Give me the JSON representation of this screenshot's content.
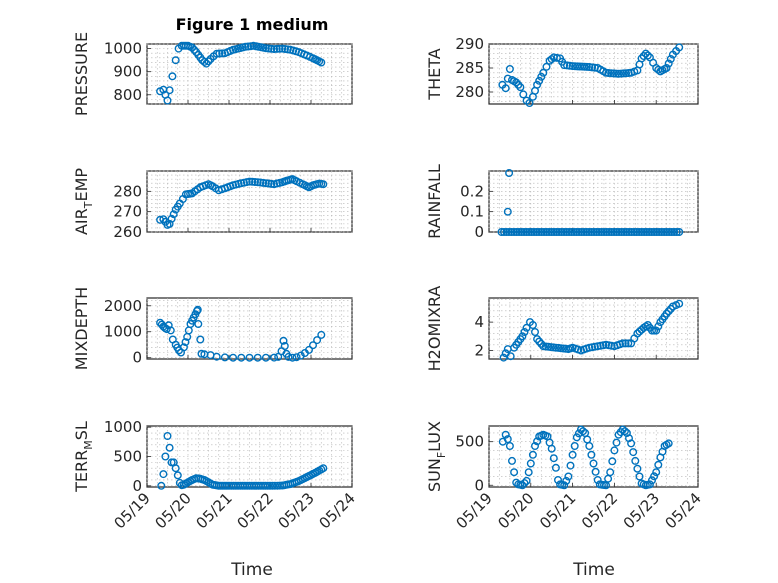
{
  "figure": {
    "title": "Figure 1 medium",
    "xlabel": "Time",
    "marker_color": "#0072BD"
  },
  "chart_data": [
    {
      "type": "scatter",
      "id": "pressure",
      "ylabel": "PRESSURE",
      "ylabel_sub": "",
      "ylabel_post": "",
      "xlim": [
        0,
        5
      ],
      "ylim": [
        760,
        1020
      ],
      "xticks": [
        0,
        1,
        2,
        3,
        4,
        5
      ],
      "xtick_labels": [
        "05/19",
        "05/20",
        "05/21",
        "05/22",
        "05/23",
        "05/24"
      ],
      "yticks": [
        800,
        900,
        1000
      ],
      "ytick_labels": [
        "800",
        "900",
        "1000"
      ],
      "grid": true,
      "minor_grid": true,
      "knots": [
        [
          0.32,
          815
        ],
        [
          0.4,
          822
        ],
        [
          0.45,
          800
        ],
        [
          0.5,
          775
        ],
        [
          0.55,
          820
        ],
        [
          0.62,
          880
        ],
        [
          0.7,
          950
        ],
        [
          0.77,
          1000
        ],
        [
          0.85,
          1012
        ],
        [
          1.0,
          1012
        ],
        [
          1.1,
          1005
        ],
        [
          1.2,
          985
        ],
        [
          1.35,
          950
        ],
        [
          1.45,
          935
        ],
        [
          1.55,
          955
        ],
        [
          1.7,
          978
        ],
        [
          1.9,
          980
        ],
        [
          2.1,
          995
        ],
        [
          2.4,
          1008
        ],
        [
          2.6,
          1012
        ],
        [
          2.9,
          1002
        ],
        [
          3.1,
          998
        ],
        [
          3.3,
          1000
        ],
        [
          3.5,
          995
        ],
        [
          3.7,
          985
        ],
        [
          3.9,
          970
        ],
        [
          4.05,
          958
        ],
        [
          4.2,
          945
        ],
        [
          4.25,
          940
        ]
      ],
      "step": 0.06
    },
    {
      "type": "scatter",
      "id": "theta",
      "ylabel": "THETA",
      "ylabel_sub": "",
      "ylabel_post": "",
      "xlim": [
        0,
        5
      ],
      "ylim": [
        277.5,
        290
      ],
      "xticks": [
        0,
        1,
        2,
        3,
        4,
        5
      ],
      "xtick_labels": [
        "05/19",
        "05/20",
        "05/21",
        "05/22",
        "05/23",
        "05/24"
      ],
      "yticks": [
        280,
        285,
        290
      ],
      "ytick_labels": [
        "280",
        "285",
        "290"
      ],
      "grid": true,
      "minor_grid": true,
      "knots": [
        [
          0.32,
          281.5
        ],
        [
          0.4,
          280.8
        ],
        [
          0.45,
          282.8
        ],
        [
          0.5,
          284.8
        ],
        [
          0.55,
          282.5
        ],
        [
          0.65,
          282.0
        ],
        [
          0.75,
          281.0
        ],
        [
          0.82,
          279.5
        ],
        [
          0.9,
          278.2
        ],
        [
          0.97,
          277.7
        ],
        [
          1.05,
          279.0
        ],
        [
          1.15,
          281.5
        ],
        [
          1.3,
          284.0
        ],
        [
          1.45,
          286.5
        ],
        [
          1.55,
          287.2
        ],
        [
          1.7,
          287.0
        ],
        [
          1.8,
          285.6
        ],
        [
          2.0,
          285.4
        ],
        [
          2.4,
          285.2
        ],
        [
          2.6,
          285.0
        ],
        [
          2.8,
          284.0
        ],
        [
          3.1,
          283.8
        ],
        [
          3.4,
          284.0
        ],
        [
          3.55,
          284.5
        ],
        [
          3.65,
          287.0
        ],
        [
          3.75,
          288.0
        ],
        [
          3.85,
          287.2
        ],
        [
          4.0,
          285.0
        ],
        [
          4.1,
          284.3
        ],
        [
          4.25,
          285.0
        ],
        [
          4.4,
          287.8
        ],
        [
          4.55,
          289.3
        ]
      ],
      "step": 0.06
    },
    {
      "type": "scatter",
      "id": "air-temp",
      "ylabel": "AIR",
      "ylabel_sub": "T",
      "ylabel_post": "EMP",
      "xlim": [
        0,
        5
      ],
      "ylim": [
        260,
        290
      ],
      "xticks": [
        0,
        1,
        2,
        3,
        4,
        5
      ],
      "xtick_labels": [
        "05/19",
        "05/20",
        "05/21",
        "05/22",
        "05/23",
        "05/24"
      ],
      "yticks": [
        260,
        270,
        280
      ],
      "ytick_labels": [
        "260",
        "270",
        "280"
      ],
      "grid": true,
      "minor_grid": true,
      "knots": [
        [
          0.32,
          266.0
        ],
        [
          0.4,
          266.3
        ],
        [
          0.45,
          265.0
        ],
        [
          0.5,
          263.5
        ],
        [
          0.55,
          264.0
        ],
        [
          0.6,
          266.5
        ],
        [
          0.7,
          271.0
        ],
        [
          0.8,
          274.0
        ],
        [
          0.95,
          278.5
        ],
        [
          1.1,
          279.0
        ],
        [
          1.3,
          282.0
        ],
        [
          1.5,
          283.5
        ],
        [
          1.6,
          282.5
        ],
        [
          1.75,
          280.5
        ],
        [
          1.9,
          281.5
        ],
        [
          2.1,
          283.0
        ],
        [
          2.3,
          284.0
        ],
        [
          2.5,
          284.8
        ],
        [
          2.7,
          284.5
        ],
        [
          2.9,
          284.0
        ],
        [
          3.1,
          283.5
        ],
        [
          3.3,
          284.5
        ],
        [
          3.45,
          285.5
        ],
        [
          3.55,
          286.0
        ],
        [
          3.65,
          285.0
        ],
        [
          3.8,
          283.5
        ],
        [
          3.95,
          282.0
        ],
        [
          4.05,
          283.0
        ],
        [
          4.2,
          283.8
        ],
        [
          4.3,
          283.5
        ]
      ],
      "step": 0.06
    },
    {
      "type": "scatter",
      "id": "rainfall",
      "ylabel": "RAINFALL",
      "ylabel_sub": "",
      "ylabel_post": "",
      "xlim": [
        0,
        5
      ],
      "ylim": [
        0,
        0.3
      ],
      "xticks": [
        0,
        1,
        2,
        3,
        4,
        5
      ],
      "xtick_labels": [
        "05/19",
        "05/20",
        "05/21",
        "05/22",
        "05/23",
        "05/24"
      ],
      "yticks": [
        0,
        0.1,
        0.2
      ],
      "ytick_labels": [
        "0",
        "0.1",
        "0.2"
      ],
      "grid": true,
      "minor_grid": true,
      "knots": [
        [
          0.3,
          0
        ],
        [
          4.55,
          0
        ]
      ],
      "step": 0.06,
      "extra_points": [
        [
          0.45,
          0.1
        ],
        [
          0.48,
          0.29
        ]
      ]
    },
    {
      "type": "scatter",
      "id": "mixdepth",
      "ylabel": "MIXDEPTH",
      "ylabel_sub": "",
      "ylabel_post": "",
      "xlim": [
        0,
        5
      ],
      "ylim": [
        -50,
        2300
      ],
      "xticks": [
        0,
        1,
        2,
        3,
        4,
        5
      ],
      "xtick_labels": [
        "05/19",
        "05/20",
        "05/21",
        "05/22",
        "05/23",
        "05/24"
      ],
      "yticks": [
        0,
        1000,
        2000
      ],
      "ytick_labels": [
        "0",
        "1000",
        "2000"
      ],
      "grid": true,
      "minor_grid": true,
      "knots": [
        [
          0.32,
          1350
        ],
        [
          0.4,
          1200
        ],
        [
          0.48,
          1100
        ],
        [
          0.53,
          1250
        ],
        [
          0.58,
          1050
        ],
        [
          0.63,
          700
        ],
        [
          0.7,
          500
        ],
        [
          0.78,
          280
        ],
        [
          0.83,
          200
        ],
        [
          0.9,
          400
        ],
        [
          0.98,
          800
        ],
        [
          1.06,
          1300
        ],
        [
          1.14,
          1550
        ],
        [
          1.22,
          1800
        ],
        [
          1.24,
          1850
        ]
      ],
      "step": 0.05,
      "extra_points": [
        [
          1.25,
          1300
        ],
        [
          1.3,
          700
        ],
        [
          1.33,
          150
        ],
        [
          1.4,
          130
        ],
        [
          1.55,
          100
        ],
        [
          1.7,
          40
        ],
        [
          1.9,
          10
        ],
        [
          2.1,
          0
        ],
        [
          2.3,
          0
        ],
        [
          2.5,
          0
        ],
        [
          2.7,
          0
        ],
        [
          2.9,
          0
        ],
        [
          3.1,
          5
        ],
        [
          3.2,
          30
        ],
        [
          3.28,
          250
        ],
        [
          3.33,
          650
        ],
        [
          3.36,
          450
        ],
        [
          3.4,
          150
        ],
        [
          3.45,
          30
        ],
        [
          3.55,
          0
        ],
        [
          3.65,
          20
        ],
        [
          3.75,
          80
        ],
        [
          3.85,
          180
        ],
        [
          3.95,
          300
        ],
        [
          4.05,
          480
        ],
        [
          4.15,
          680
        ],
        [
          4.25,
          880
        ]
      ]
    },
    {
      "type": "scatter",
      "id": "h2omixra",
      "ylabel": "H2OMIXRA",
      "ylabel_sub": "",
      "ylabel_post": "",
      "xlim": [
        0,
        5
      ],
      "ylim": [
        1.4,
        5.7
      ],
      "xticks": [
        0,
        1,
        2,
        3,
        4,
        5
      ],
      "xtick_labels": [
        "05/19",
        "05/20",
        "05/21",
        "05/22",
        "05/23",
        "05/24"
      ],
      "yticks": [
        2,
        4
      ],
      "ytick_labels": [
        "2",
        "4"
      ],
      "grid": true,
      "minor_grid": true,
      "knots": [
        [
          0.35,
          1.5
        ],
        [
          0.45,
          2.1
        ],
        [
          0.52,
          1.6
        ],
        [
          0.6,
          2.2
        ],
        [
          0.7,
          2.6
        ],
        [
          0.8,
          3.0
        ],
        [
          0.9,
          3.6
        ],
        [
          0.98,
          4.0
        ],
        [
          1.05,
          3.8
        ],
        [
          1.15,
          2.8
        ],
        [
          1.3,
          2.3
        ],
        [
          1.6,
          2.2
        ],
        [
          1.9,
          2.1
        ],
        [
          2.0,
          2.2
        ],
        [
          2.2,
          2.0
        ],
        [
          2.4,
          2.2
        ],
        [
          2.6,
          2.3
        ],
        [
          2.8,
          2.4
        ],
        [
          3.0,
          2.3
        ],
        [
          3.2,
          2.5
        ],
        [
          3.4,
          2.5
        ],
        [
          3.55,
          3.2
        ],
        [
          3.7,
          3.6
        ],
        [
          3.8,
          3.8
        ],
        [
          3.9,
          3.4
        ],
        [
          4.0,
          3.4
        ],
        [
          4.1,
          4.0
        ],
        [
          4.25,
          4.6
        ],
        [
          4.4,
          5.1
        ],
        [
          4.55,
          5.3
        ]
      ],
      "step": 0.06
    },
    {
      "type": "scatter",
      "id": "terr-msl",
      "ylabel": "TERR",
      "ylabel_sub": "M",
      "ylabel_post": "SL",
      "xlim": [
        0,
        5
      ],
      "ylim": [
        -20,
        1020
      ],
      "xticks": [
        0,
        1,
        2,
        3,
        4,
        5
      ],
      "xtick_labels": [
        "05/19",
        "05/20",
        "05/21",
        "05/22",
        "05/23",
        "05/24"
      ],
      "yticks": [
        0,
        500,
        1000
      ],
      "ytick_labels": [
        "0",
        "500",
        "1000"
      ],
      "grid": true,
      "minor_grid": true,
      "knots": [
        [
          0.35,
          0
        ],
        [
          0.4,
          200
        ],
        [
          0.45,
          500
        ],
        [
          0.5,
          850
        ],
        [
          0.55,
          650
        ],
        [
          0.6,
          400
        ],
        [
          0.65,
          400
        ],
        [
          0.7,
          300
        ],
        [
          0.75,
          180
        ],
        [
          0.8,
          50
        ],
        [
          0.85,
          10
        ],
        [
          0.9,
          20
        ],
        [
          1.0,
          60
        ],
        [
          1.1,
          100
        ],
        [
          1.2,
          130
        ],
        [
          1.3,
          120
        ],
        [
          1.4,
          100
        ],
        [
          1.5,
          60
        ],
        [
          1.6,
          20
        ],
        [
          1.75,
          0
        ],
        [
          2.0,
          0
        ],
        [
          2.5,
          0
        ],
        [
          3.0,
          0
        ],
        [
          3.3,
          5
        ],
        [
          3.5,
          30
        ],
        [
          3.7,
          80
        ],
        [
          3.9,
          150
        ],
        [
          4.1,
          220
        ],
        [
          4.3,
          300
        ]
      ],
      "step": 0.055
    },
    {
      "type": "scatter",
      "id": "sun-flux",
      "ylabel": "SUN",
      "ylabel_sub": "F",
      "ylabel_post": "LUX",
      "xlim": [
        0,
        5
      ],
      "ylim": [
        -20,
        680
      ],
      "xticks": [
        0,
        1,
        2,
        3,
        4,
        5
      ],
      "xtick_labels": [
        "05/19",
        "05/20",
        "05/21",
        "05/22",
        "05/23",
        "05/24"
      ],
      "yticks": [
        0,
        500
      ],
      "ytick_labels": [
        "0",
        "500"
      ],
      "grid": true,
      "minor_grid": true,
      "knots": [
        [
          0.33,
          500
        ],
        [
          0.4,
          580
        ],
        [
          0.45,
          530
        ],
        [
          0.5,
          450
        ],
        [
          0.55,
          280
        ],
        [
          0.6,
          150
        ],
        [
          0.65,
          30
        ],
        [
          0.7,
          10
        ],
        [
          0.8,
          0
        ],
        [
          0.9,
          50
        ],
        [
          1.0,
          250
        ],
        [
          1.1,
          450
        ],
        [
          1.2,
          560
        ],
        [
          1.3,
          580
        ],
        [
          1.4,
          560
        ],
        [
          1.5,
          420
        ],
        [
          1.6,
          200
        ],
        [
          1.65,
          60
        ],
        [
          1.7,
          10
        ],
        [
          1.8,
          0
        ],
        [
          1.9,
          100
        ],
        [
          2.0,
          350
        ],
        [
          2.1,
          550
        ],
        [
          2.2,
          640
        ],
        [
          2.3,
          600
        ],
        [
          2.4,
          450
        ],
        [
          2.5,
          250
        ],
        [
          2.6,
          60
        ],
        [
          2.65,
          10
        ],
        [
          2.8,
          0
        ],
        [
          2.9,
          150
        ],
        [
          3.0,
          400
        ],
        [
          3.1,
          580
        ],
        [
          3.2,
          640
        ],
        [
          3.3,
          600
        ],
        [
          3.4,
          480
        ],
        [
          3.5,
          280
        ],
        [
          3.6,
          100
        ],
        [
          3.65,
          20
        ],
        [
          3.75,
          0
        ],
        [
          3.85,
          10
        ],
        [
          4.0,
          150
        ],
        [
          4.1,
          320
        ],
        [
          4.2,
          450
        ],
        [
          4.3,
          480
        ]
      ],
      "step": 0.05
    }
  ]
}
